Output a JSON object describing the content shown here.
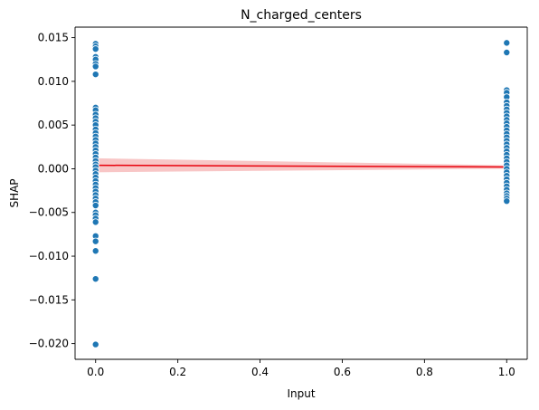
{
  "chart_data": {
    "type": "scatter",
    "title": "N_charged_centers",
    "xlabel": "Input",
    "ylabel": "SHAP",
    "xlim": [
      -0.05,
      1.05
    ],
    "ylim": [
      -0.0218,
      0.0162
    ],
    "xticks": [
      {
        "value": 0.0,
        "label": "0.0"
      },
      {
        "value": 0.2,
        "label": "0.2"
      },
      {
        "value": 0.4,
        "label": "0.4"
      },
      {
        "value": 0.6,
        "label": "0.6"
      },
      {
        "value": 0.8,
        "label": "0.8"
      },
      {
        "value": 1.0,
        "label": "1.0"
      }
    ],
    "yticks": [
      {
        "value": 0.015,
        "label": "0.015"
      },
      {
        "value": 0.01,
        "label": "0.010"
      },
      {
        "value": 0.005,
        "label": "0.005"
      },
      {
        "value": 0.0,
        "label": "0.000"
      },
      {
        "value": -0.005,
        "label": "−0.005"
      },
      {
        "value": -0.01,
        "label": "−0.010"
      },
      {
        "value": -0.015,
        "label": "−0.015"
      },
      {
        "value": -0.02,
        "label": "−0.020"
      }
    ],
    "grid": false,
    "point_color": "#1f77b4",
    "trend_color": "#e8000b",
    "band_color": "#f08080",
    "points": [
      {
        "x": 0,
        "y": 0.0143
      },
      {
        "x": 0,
        "y": 0.014
      },
      {
        "x": 0,
        "y": 0.0137
      },
      {
        "x": 0,
        "y": 0.0128
      },
      {
        "x": 0,
        "y": 0.0125
      },
      {
        "x": 0,
        "y": 0.012
      },
      {
        "x": 0,
        "y": 0.0117
      },
      {
        "x": 0,
        "y": 0.0108
      },
      {
        "x": 0,
        "y": 0.007
      },
      {
        "x": 0,
        "y": 0.0067
      },
      {
        "x": 0,
        "y": 0.0062
      },
      {
        "x": 0,
        "y": 0.0058
      },
      {
        "x": 0,
        "y": 0.0054
      },
      {
        "x": 0,
        "y": 0.005
      },
      {
        "x": 0,
        "y": 0.0045
      },
      {
        "x": 0,
        "y": 0.0041
      },
      {
        "x": 0,
        "y": 0.0037
      },
      {
        "x": 0,
        "y": 0.0033
      },
      {
        "x": 0,
        "y": 0.0029
      },
      {
        "x": 0,
        "y": 0.0025
      },
      {
        "x": 0,
        "y": 0.0021
      },
      {
        "x": 0,
        "y": 0.0017
      },
      {
        "x": 0,
        "y": 0.0013
      },
      {
        "x": 0,
        "y": 0.0009
      },
      {
        "x": 0,
        "y": 0.0005
      },
      {
        "x": 0,
        "y": 0.0002
      },
      {
        "x": 0,
        "y": -0.0002
      },
      {
        "x": 0,
        "y": -0.0006
      },
      {
        "x": 0,
        "y": -0.001
      },
      {
        "x": 0,
        "y": -0.0014
      },
      {
        "x": 0,
        "y": -0.0018
      },
      {
        "x": 0,
        "y": -0.0022
      },
      {
        "x": 0,
        "y": -0.0026
      },
      {
        "x": 0,
        "y": -0.003
      },
      {
        "x": 0,
        "y": -0.0034
      },
      {
        "x": 0,
        "y": -0.0038
      },
      {
        "x": 0,
        "y": -0.0042
      },
      {
        "x": 0,
        "y": -0.005
      },
      {
        "x": 0,
        "y": -0.0053
      },
      {
        "x": 0,
        "y": -0.0057
      },
      {
        "x": 0,
        "y": -0.0061
      },
      {
        "x": 0,
        "y": -0.0077
      },
      {
        "x": 0,
        "y": -0.0083
      },
      {
        "x": 0,
        "y": -0.0094
      },
      {
        "x": 0,
        "y": -0.0126
      },
      {
        "x": 0,
        "y": -0.0201
      },
      {
        "x": 1,
        "y": 0.0144
      },
      {
        "x": 1,
        "y": 0.0133
      },
      {
        "x": 1,
        "y": 0.009
      },
      {
        "x": 1,
        "y": 0.0087
      },
      {
        "x": 1,
        "y": 0.0082
      },
      {
        "x": 1,
        "y": 0.0076
      },
      {
        "x": 1,
        "y": 0.0072
      },
      {
        "x": 1,
        "y": 0.0068
      },
      {
        "x": 1,
        "y": 0.0064
      },
      {
        "x": 1,
        "y": 0.006
      },
      {
        "x": 1,
        "y": 0.0056
      },
      {
        "x": 1,
        "y": 0.0052
      },
      {
        "x": 1,
        "y": 0.0048
      },
      {
        "x": 1,
        "y": 0.0044
      },
      {
        "x": 1,
        "y": 0.004
      },
      {
        "x": 1,
        "y": 0.0036
      },
      {
        "x": 1,
        "y": 0.0032
      },
      {
        "x": 1,
        "y": 0.0028
      },
      {
        "x": 1,
        "y": 0.0024
      },
      {
        "x": 1,
        "y": 0.002
      },
      {
        "x": 1,
        "y": 0.0016
      },
      {
        "x": 1,
        "y": 0.0012
      },
      {
        "x": 1,
        "y": 0.0008
      },
      {
        "x": 1,
        "y": 0.0004
      },
      {
        "x": 1,
        "y": 0.0
      },
      {
        "x": 1,
        "y": -0.0004
      },
      {
        "x": 1,
        "y": -0.0008
      },
      {
        "x": 1,
        "y": -0.0012
      },
      {
        "x": 1,
        "y": -0.0016
      },
      {
        "x": 1,
        "y": -0.002
      },
      {
        "x": 1,
        "y": -0.0024
      },
      {
        "x": 1,
        "y": -0.0028
      },
      {
        "x": 1,
        "y": -0.0031
      },
      {
        "x": 1,
        "y": -0.0034
      },
      {
        "x": 1,
        "y": -0.0037
      }
    ],
    "trend": {
      "x": [
        0,
        1
      ],
      "y": [
        0.0004,
        0.0002
      ]
    },
    "band": {
      "x": [
        0,
        1
      ],
      "upper": [
        0.0012,
        0.0004
      ],
      "lower": [
        -0.0004,
        0.0
      ]
    }
  }
}
